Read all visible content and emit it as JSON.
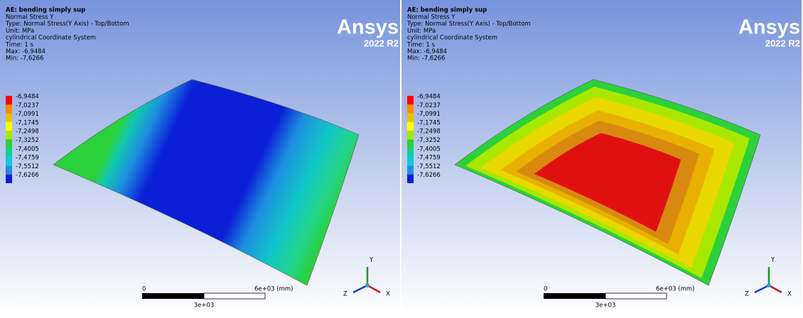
{
  "panels": [
    {
      "title": "AE: bending simply sup",
      "lines": [
        "Normal Stress Y",
        "Type: Normal Stress(Y Axis) - Top/Bottom",
        "Unit: MPa",
        "cylindrical Coordinate System",
        "Time: 1 s",
        "Max: -6,9484",
        "Min: -7,6266"
      ],
      "legend": [
        "-6,9484",
        "-7,0237",
        "-7,0991",
        "-7,1745",
        "-7,2498",
        "-7,3252",
        "-7,4005",
        "-7,4759",
        "-7,5512",
        "-7,6266"
      ],
      "brand": "Ansys",
      "version": "2022 R2",
      "scale": {
        "start": "0",
        "end": "6e+03 (mm)",
        "mid": "3e+03"
      },
      "axes": {
        "x": "X",
        "y": "Y",
        "z": "Z"
      }
    },
    {
      "title": "AE: bending simply sup",
      "lines": [
        "Normal Stress Y",
        "Type: Normal Stress(Y Axis) - Top/Bottom",
        "Unit: MPa",
        "cylindrical Coordinate System",
        "Time: 1 s",
        "Max: -6,9484",
        "Min: -7,6266"
      ],
      "legend": [
        "-6,9484",
        "-7,0237",
        "-7,0991",
        "-7,1745",
        "-7,2498",
        "-7,3252",
        "-7,4005",
        "-7,4759",
        "-7,5512",
        "-7,6266"
      ],
      "brand": "Ansys",
      "version": "2022 R2",
      "scale": {
        "start": "0",
        "end": "6e+03 (mm)",
        "mid": "3e+03"
      },
      "axes": {
        "x": "X",
        "y": "Y",
        "z": "Z"
      }
    }
  ]
}
